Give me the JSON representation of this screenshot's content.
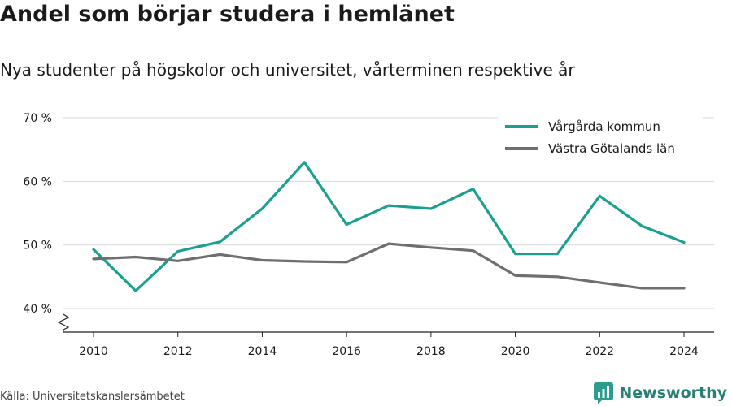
{
  "title": "Andel som börjar studera i hemlänet",
  "subtitle": "Nya studenter på högskolor och universitet, vårterminen respektive år",
  "source": "Källa: Universitetskanslersämbetet",
  "brand": "Newsworthy",
  "chart_data": {
    "type": "line",
    "x": [
      2010,
      2011,
      2012,
      2013,
      2014,
      2015,
      2016,
      2017,
      2018,
      2019,
      2020,
      2021,
      2022,
      2023,
      2024
    ],
    "x_ticks": [
      "2010",
      "2012",
      "2014",
      "2016",
      "2018",
      "2020",
      "2022",
      "2024"
    ],
    "y_ticks": [
      "40 %",
      "50 %",
      "60 %",
      "70 %"
    ],
    "ylim": [
      40,
      70
    ],
    "legend_position": "top-right",
    "grid": true,
    "series": [
      {
        "name": "Vårgårda kommun",
        "color": "#1aa091",
        "values": [
          49.3,
          42.8,
          49.0,
          50.5,
          55.7,
          63.0,
          53.2,
          56.2,
          55.7,
          58.8,
          48.6,
          48.6,
          57.7,
          53.0,
          50.4
        ]
      },
      {
        "name": "Västra Götalands län",
        "color": "#6f6e73",
        "values": [
          47.8,
          48.1,
          47.5,
          48.5,
          47.6,
          47.4,
          47.3,
          50.2,
          49.6,
          49.1,
          45.2,
          45.0,
          44.1,
          43.2,
          43.2
        ]
      }
    ]
  }
}
